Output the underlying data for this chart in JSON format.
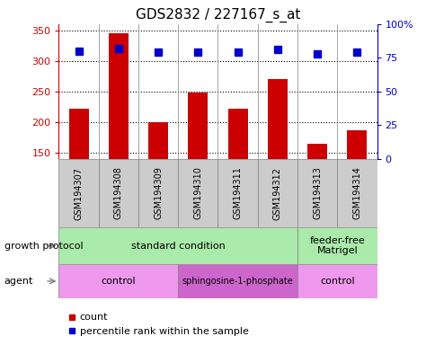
{
  "title": "GDS2832 / 227167_s_at",
  "samples": [
    "GSM194307",
    "GSM194308",
    "GSM194309",
    "GSM194310",
    "GSM194311",
    "GSM194312",
    "GSM194313",
    "GSM194314"
  ],
  "counts": [
    222,
    345,
    200,
    248,
    222,
    270,
    165,
    187
  ],
  "percentile_ranks": [
    80,
    82,
    79,
    79,
    79,
    81,
    78,
    79
  ],
  "ylim_left": [
    140,
    360
  ],
  "ylim_right": [
    0,
    100
  ],
  "yticks_left": [
    150,
    200,
    250,
    300,
    350
  ],
  "yticks_right": [
    0,
    25,
    50,
    75,
    100
  ],
  "bar_color": "#cc0000",
  "dot_color": "#0000cc",
  "bar_width": 0.5,
  "growth_protocol_groups": [
    {
      "label": "standard condition",
      "start": 0,
      "end": 6,
      "color": "#aaeaaa"
    },
    {
      "label": "feeder-free\nMatrigel",
      "start": 6,
      "end": 8,
      "color": "#aaeaaa"
    }
  ],
  "agent_groups": [
    {
      "label": "control",
      "start": 0,
      "end": 3,
      "color": "#ee99ee"
    },
    {
      "label": "sphingosine-1-phosphate",
      "start": 3,
      "end": 6,
      "color": "#cc66cc"
    },
    {
      "label": "control",
      "start": 6,
      "end": 8,
      "color": "#ee99ee"
    }
  ],
  "sample_box_color": "#cccccc",
  "grid_color": "#000000",
  "left_axis_color": "#cc0000",
  "right_axis_color": "#0000cc",
  "annotation_row1_label": "growth protocol",
  "annotation_row2_label": "agent",
  "legend_count_label": "count",
  "legend_pct_label": "percentile rank within the sample",
  "pct_marker_size": 6
}
